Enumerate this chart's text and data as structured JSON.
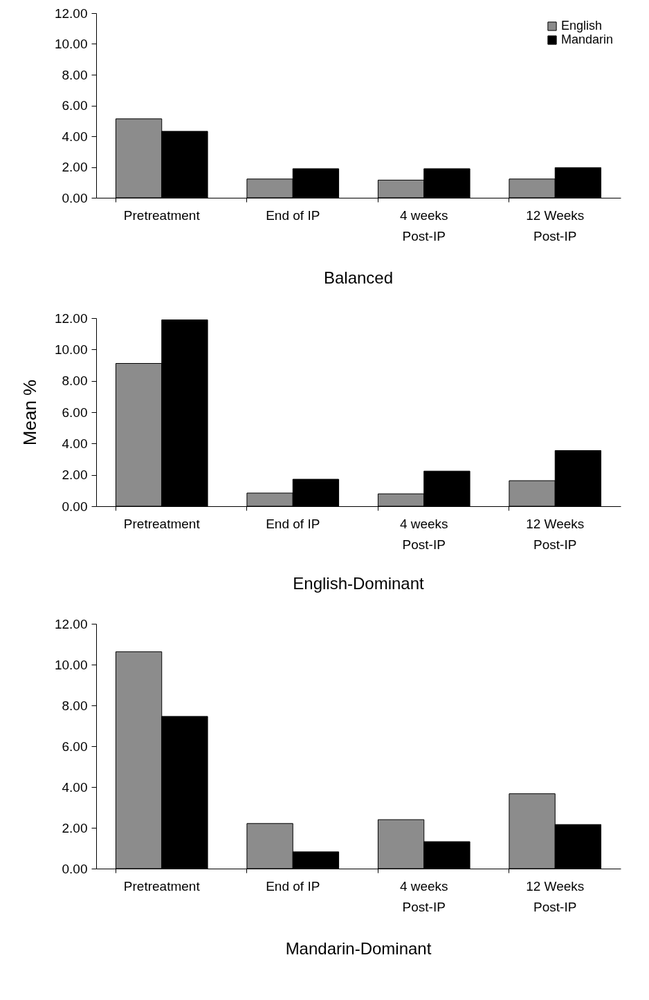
{
  "chart_data": [
    {
      "type": "bar",
      "title": "Balanced",
      "categories": [
        "Pretreatment",
        "End of IP",
        "4 weeks Post-IP",
        "12 Weeks Post-IP"
      ],
      "series": [
        {
          "name": "English",
          "color": "#8c8c8c",
          "values": [
            5.13,
            1.22,
            1.15,
            1.22
          ]
        },
        {
          "name": "Mandarin",
          "color": "#000000",
          "values": [
            4.32,
            1.89,
            1.89,
            1.96
          ]
        }
      ],
      "ylim": [
        0,
        12
      ],
      "yticks": [
        {
          "value": 0,
          "label": "0.00"
        },
        {
          "value": 2,
          "label": "2.00"
        },
        {
          "value": 4,
          "label": "4.00"
        },
        {
          "value": 6,
          "label": "6.00"
        },
        {
          "value": 8,
          "label": "8.00"
        },
        {
          "value": 10,
          "label": "10.00"
        },
        {
          "value": 12,
          "label": "12.00"
        }
      ],
      "grid": false,
      "legend": "top right"
    },
    {
      "type": "bar",
      "title": "English-Dominant",
      "ylabel": "Mean %",
      "categories": [
        "Pretreatment",
        "End of IP",
        "4 weeks Post-IP",
        "12 Weeks Post-IP"
      ],
      "series": [
        {
          "name": "English",
          "color": "#8c8c8c",
          "values": [
            9.11,
            0.84,
            0.79,
            1.63
          ]
        },
        {
          "name": "Mandarin",
          "color": "#000000",
          "values": [
            11.89,
            1.72,
            2.24,
            3.55
          ]
        }
      ],
      "ylim": [
        0,
        12
      ],
      "yticks": [
        {
          "value": 0,
          "label": "0.00"
        },
        {
          "value": 2,
          "label": "2.00"
        },
        {
          "value": 4,
          "label": "4.00"
        },
        {
          "value": 6,
          "label": "6.00"
        },
        {
          "value": 8,
          "label": "8.00"
        },
        {
          "value": 10,
          "label": "10.00"
        },
        {
          "value": 12,
          "label": "12.00"
        }
      ],
      "grid": false
    },
    {
      "type": "bar",
      "title": "Mandarin-Dominant",
      "categories": [
        "Pretreatment",
        "End of IP",
        "4 weeks Post-IP",
        "12 Weeks Post-IP"
      ],
      "series": [
        {
          "name": "English",
          "color": "#8c8c8c",
          "values": [
            10.63,
            2.21,
            2.4,
            3.67
          ]
        },
        {
          "name": "Mandarin",
          "color": "#000000",
          "values": [
            7.46,
            0.82,
            1.32,
            2.16
          ]
        }
      ],
      "ylim": [
        0,
        12
      ],
      "yticks": [
        {
          "value": 0,
          "label": "0.00"
        },
        {
          "value": 2,
          "label": "2.00"
        },
        {
          "value": 4,
          "label": "4.00"
        },
        {
          "value": 6,
          "label": "6.00"
        },
        {
          "value": 8,
          "label": "8.00"
        },
        {
          "value": 10,
          "label": "10.00"
        },
        {
          "value": 12,
          "label": "12.00"
        }
      ],
      "grid": false
    }
  ]
}
